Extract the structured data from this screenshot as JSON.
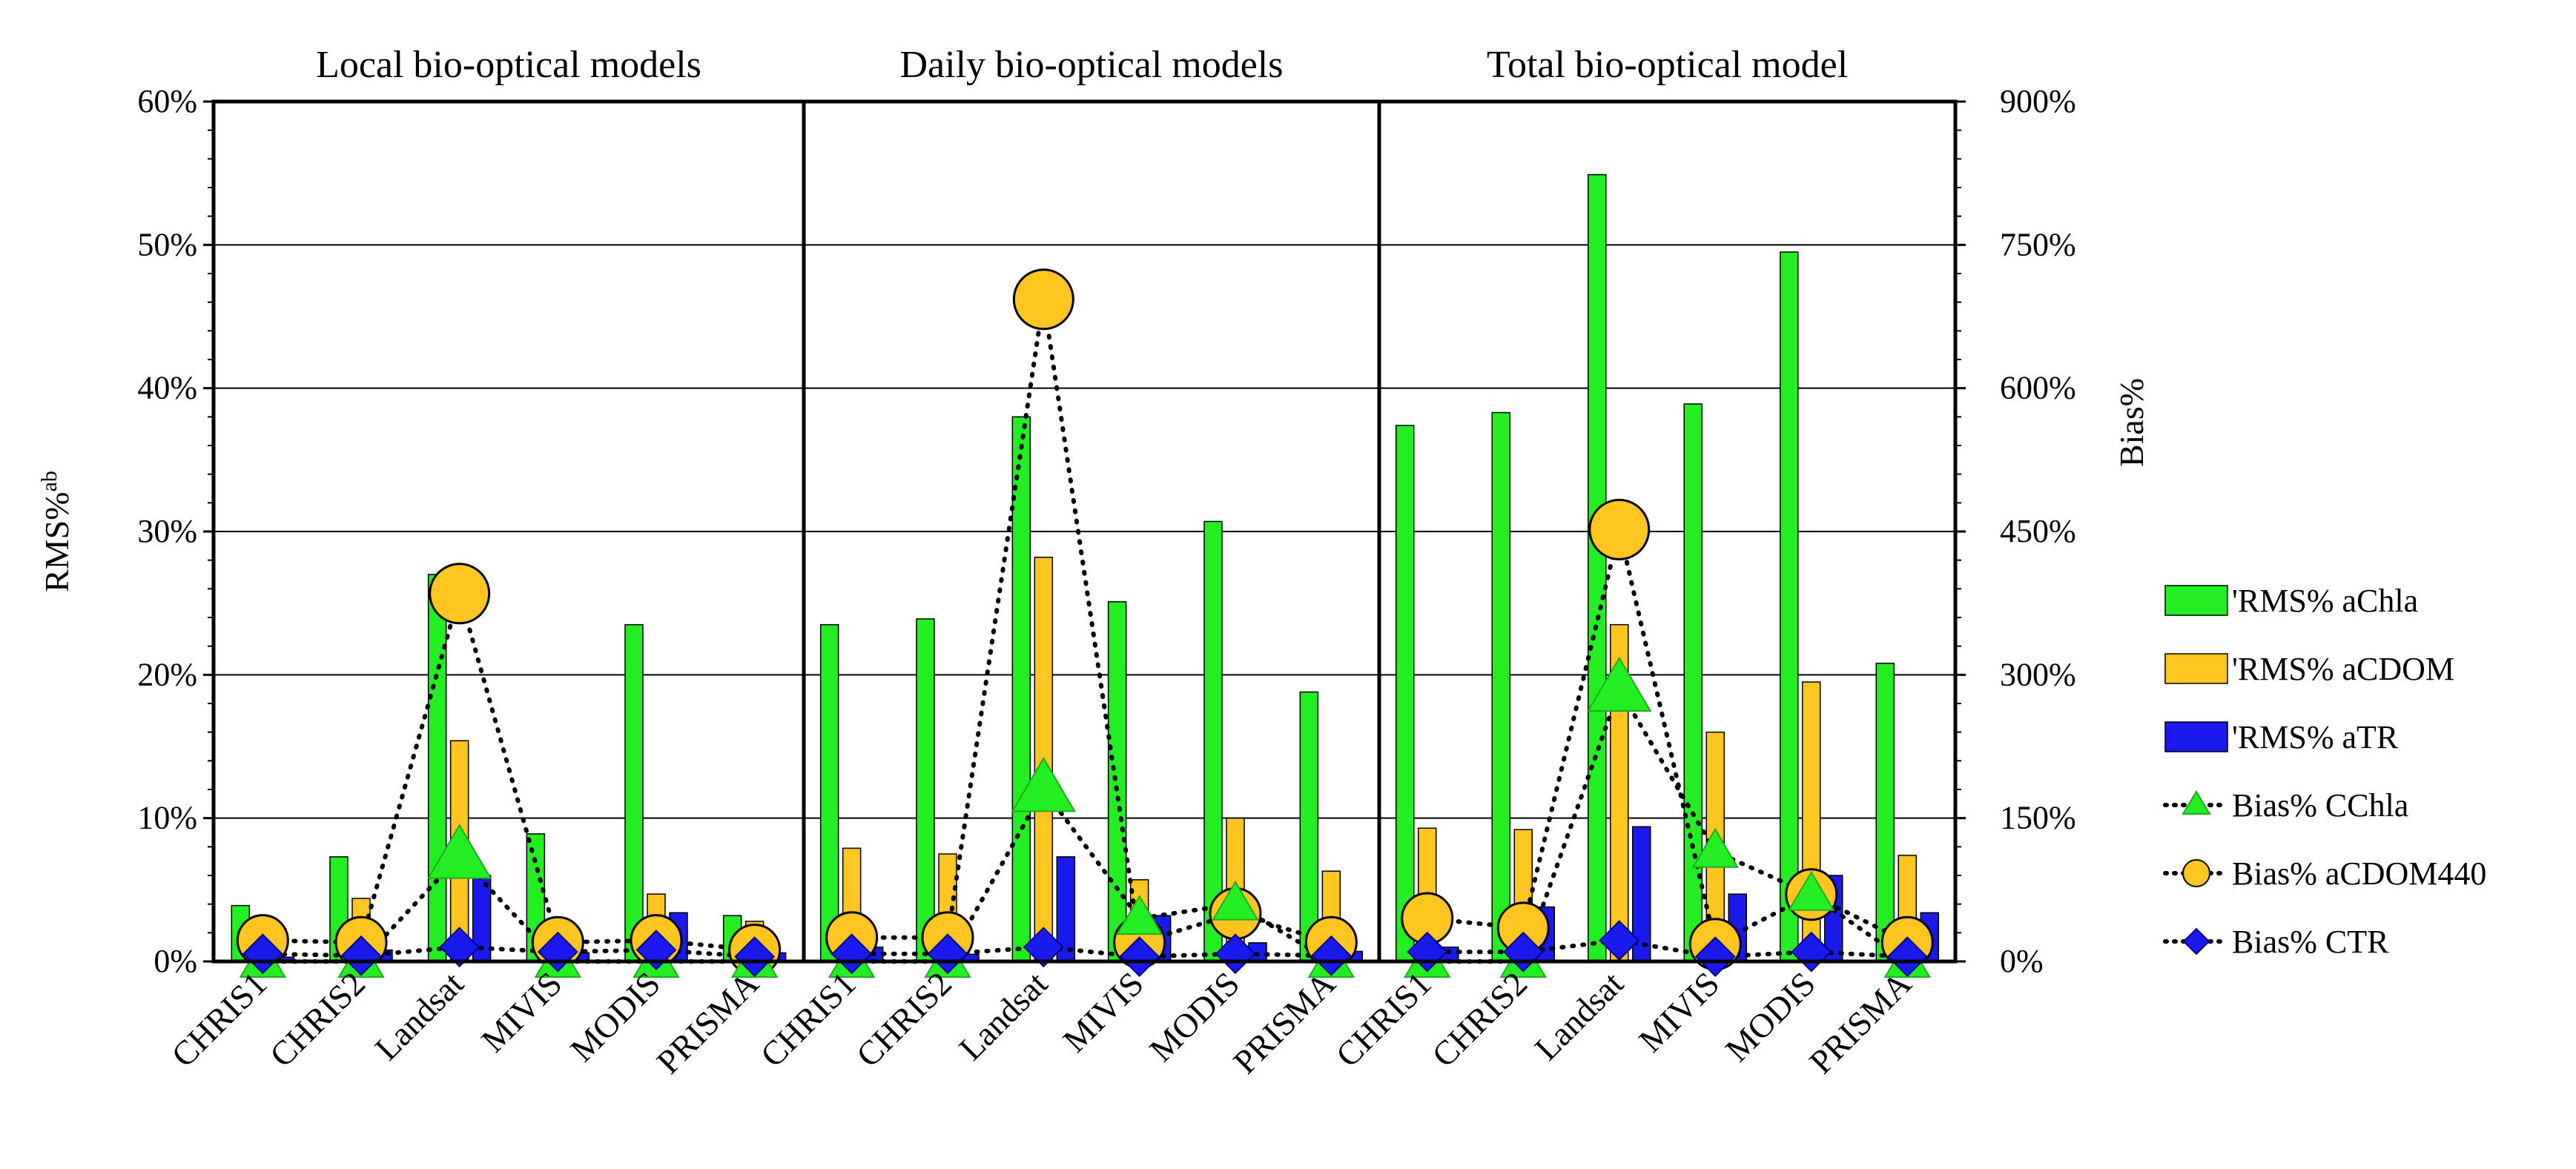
{
  "chart_data": {
    "type": "bar",
    "panels": [
      {
        "title": "Local bio-optical models",
        "categories": [
          "CHRIS1",
          "CHRIS2",
          "Landsat",
          "MIVIS",
          "MODIS",
          "PRISMA"
        ],
        "rms": {
          "aChla": [
            3.9,
            7.3,
            27.0,
            8.9,
            23.5,
            3.2
          ],
          "aCDOM": [
            0.8,
            4.4,
            15.4,
            2.3,
            4.7,
            2.8
          ],
          "aTR": [
            0.3,
            0.8,
            6.0,
            0.6,
            3.4,
            0.6
          ]
        },
        "bias": {
          "CChla": [
            0,
            0,
            110,
            0,
            0,
            0
          ],
          "aCDOM440": [
            22,
            20,
            385,
            20,
            22,
            12
          ],
          "CTR": [
            8,
            6,
            15,
            10,
            12,
            5
          ]
        }
      },
      {
        "title": "Daily bio-optical models",
        "categories": [
          "CHRIS1",
          "CHRIS2",
          "Landsat",
          "MIVIS",
          "MODIS",
          "PRISMA"
        ],
        "rms": {
          "aChla": [
            23.5,
            23.9,
            38.0,
            25.1,
            30.7,
            18.8
          ],
          "aCDOM": [
            7.9,
            7.5,
            28.2,
            5.7,
            10.0,
            6.3
          ],
          "aTR": [
            1.0,
            0.5,
            7.3,
            3.2,
            1.3,
            0.7
          ]
        },
        "bias": {
          "CChla": [
            0,
            0,
            180,
            45,
            60,
            0
          ],
          "aCDOM440": [
            25,
            25,
            693,
            20,
            50,
            20
          ],
          "CTR": [
            8,
            8,
            15,
            5,
            8,
            6
          ]
        }
      },
      {
        "title": "Total bio-optical model",
        "categories": [
          "CHRIS1",
          "CHRIS2",
          "Landsat",
          "MIVIS",
          "MODIS",
          "PRISMA"
        ],
        "rms": {
          "aChla": [
            37.4,
            38.3,
            54.9,
            38.9,
            49.5,
            20.8
          ],
          "aCDOM": [
            9.3,
            9.2,
            23.5,
            16.0,
            19.5,
            7.4
          ],
          "aTR": [
            1.0,
            3.8,
            9.4,
            4.7,
            6.0,
            3.4
          ]
        },
        "bias": {
          "CChla": [
            0,
            0,
            285,
            115,
            70,
            0
          ],
          "aCDOM440": [
            45,
            35,
            452,
            18,
            70,
            20
          ],
          "CTR": [
            10,
            10,
            22,
            5,
            10,
            5
          ]
        }
      }
    ],
    "ylabel_left": "RMS%ab",
    "ylabel_left_main": "RMS%",
    "ylabel_left_sup": "ab",
    "ylabel_right": "Bias%",
    "left_axis": {
      "min": 0,
      "max": 60,
      "step": 10,
      "tick_labels": [
        "0%",
        "10%",
        "20%",
        "30%",
        "40%",
        "50%",
        "60%"
      ]
    },
    "right_axis": {
      "min": 0,
      "max": 900,
      "step": 150,
      "tick_labels": [
        "0%",
        "150%",
        "300%",
        "450%",
        "600%",
        "750%",
        "900%"
      ]
    },
    "grid": true,
    "legend_position": "right",
    "legend": [
      {
        "key": "rms_aChla",
        "label": "'RMS% aChla",
        "kind": "bar",
        "color": "#22ee22"
      },
      {
        "key": "rms_aCDOM",
        "label": "'RMS% aCDOM",
        "kind": "bar",
        "color": "#ffc61f"
      },
      {
        "key": "rms_aTR",
        "label": "'RMS% aTR",
        "kind": "bar",
        "color": "#1a1aee"
      },
      {
        "key": "bias_CChla",
        "label": "Bias% CChla",
        "kind": "line",
        "marker": "triangle",
        "color": "#22ee22"
      },
      {
        "key": "bias_aCDOM440",
        "label": "Bias% aCDOM440",
        "kind": "line",
        "marker": "circle",
        "color": "#ffc61f"
      },
      {
        "key": "bias_CTR",
        "label": "Bias% CTR",
        "kind": "line",
        "marker": "diamond",
        "color": "#1a1aee"
      }
    ],
    "colors": {
      "aChla": "#22ee22",
      "aCDOM": "#ffc61f",
      "aTR": "#1a1aee",
      "outline": "#000000"
    }
  }
}
